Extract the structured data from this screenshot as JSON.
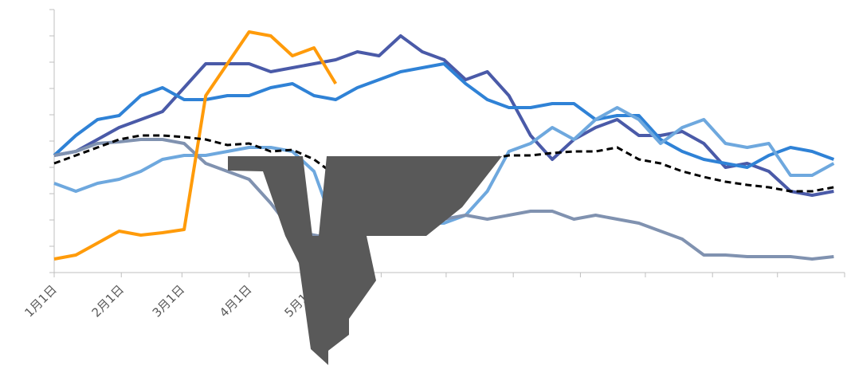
{
  "chart_data": {
    "type": "line",
    "x": [
      0,
      10,
      20,
      30,
      40,
      50,
      60,
      70,
      80,
      90,
      100,
      110,
      120,
      130,
      140,
      150,
      160,
      170,
      180,
      190,
      200,
      210,
      220,
      230,
      240,
      250,
      260,
      270,
      280,
      290,
      300,
      310,
      320,
      330,
      340,
      350,
      360
    ],
    "xlim": [
      0,
      365
    ],
    "xticks": [
      {
        "value": 0,
        "label": "1月1日"
      },
      {
        "value": 31,
        "label": "2月1日"
      },
      {
        "value": 59,
        "label": "3月1日"
      },
      {
        "value": 90,
        "label": "4月1日"
      },
      {
        "value": 120,
        "label": "5月1日"
      },
      {
        "value": 151,
        "label": null
      },
      {
        "value": 181,
        "label": null
      },
      {
        "value": 212,
        "label": null
      },
      {
        "value": 243,
        "label": null
      },
      {
        "value": 273,
        "label": null
      },
      {
        "value": 304,
        "label": null
      },
      {
        "value": 334,
        "label": null
      },
      {
        "value": 365,
        "label": null
      }
    ],
    "ylim": [
      0,
      330
    ],
    "yticks": [
      0,
      33,
      66,
      99,
      132,
      165,
      198,
      231,
      264,
      297,
      330
    ],
    "series": [
      {
        "color": "#4a5aa8",
        "dash": false,
        "values": [
          147,
          152,
          167,
          182,
          192,
          202,
          232,
          262,
          262,
          262,
          252,
          257,
          262,
          267,
          277,
          272,
          297,
          277,
          267,
          242,
          252,
          222,
          172,
          142,
          167,
          182,
          192,
          172,
          172,
          177,
          162,
          132,
          137,
          127,
          102,
          97,
          102
        ]
      },
      {
        "color": "#2f82d6",
        "dash": false,
        "values": [
          147,
          172,
          192,
          197,
          222,
          232,
          217,
          217,
          222,
          222,
          232,
          237,
          222,
          217,
          232,
          242,
          252,
          257,
          262,
          237,
          217,
          207,
          207,
          212,
          212,
          192,
          197,
          197,
          167,
          152,
          142,
          137,
          132,
          147,
          157,
          152,
          142
        ]
      },
      {
        "color": "#6ea8de",
        "dash": false,
        "values": [
          112,
          102,
          112,
          117,
          127,
          142,
          147,
          147,
          152,
          157,
          157,
          152,
          127,
          52,
          82,
          72,
          67,
          62,
          62,
          72,
          102,
          152,
          162,
          182,
          167,
          192,
          207,
          192,
          162,
          182,
          192,
          162,
          157,
          162,
          122,
          122,
          137
        ]
      },
      {
        "color": "#8092b0",
        "dash": false,
        "values": [
          147,
          152,
          162,
          164,
          167,
          167,
          162,
          137,
          127,
          117,
          87,
          52,
          47,
          42,
          52,
          57,
          57,
          62,
          67,
          72,
          67,
          72,
          77,
          77,
          67,
          72,
          67,
          62,
          52,
          42,
          22,
          22,
          20,
          20,
          20,
          17,
          20
        ]
      },
      {
        "color": "#ff9b0a",
        "dash": false,
        "values": [
          17,
          22,
          37,
          52,
          47,
          50,
          54,
          222,
          262,
          302,
          297,
          272,
          282,
          237,
          null,
          null,
          null,
          null,
          null,
          null,
          null,
          null,
          null,
          null,
          null,
          null,
          null,
          null,
          null,
          null,
          null,
          null,
          null,
          null,
          null,
          null,
          null
        ]
      },
      {
        "color": "#000000",
        "dash": true,
        "values": [
          137,
          147,
          157,
          167,
          172,
          172,
          170,
          167,
          160,
          162,
          152,
          154,
          142,
          122,
          127,
          127,
          127,
          127,
          127,
          132,
          142,
          147,
          147,
          150,
          152,
          152,
          157,
          142,
          137,
          127,
          120,
          114,
          110,
          107,
          102,
          102,
          107
        ]
      }
    ]
  }
}
